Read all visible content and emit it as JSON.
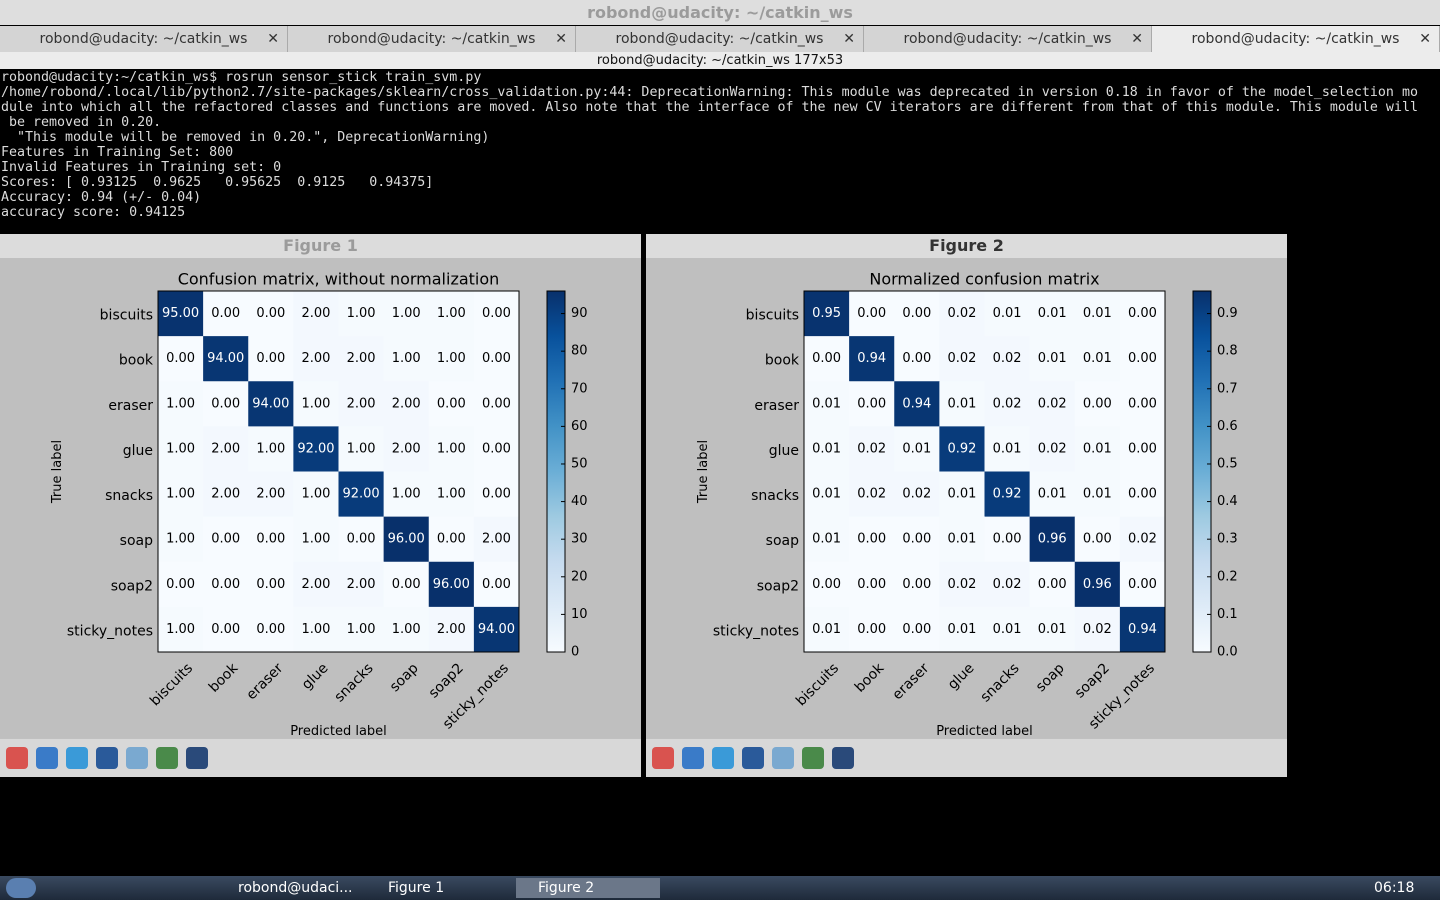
{
  "window": {
    "title": "robond@udacity: ~/catkin_ws",
    "tabs": [
      "robond@udacity: ~/catkin_ws",
      "robond@udacity: ~/catkin_ws",
      "robond@udacity: ~/catkin_ws",
      "robond@udacity: ~/catkin_ws",
      "robond@udacity: ~/catkin_ws"
    ],
    "subtitle": "robond@udacity: ~/catkin_ws 177x53"
  },
  "terminal": {
    "lines": [
      "robond@udacity:~/catkin_ws$ rosrun sensor_stick train_svm.py",
      "/home/robond/.local/lib/python2.7/site-packages/sklearn/cross_validation.py:44: DeprecationWarning: This module was deprecated in version 0.18 in favor of the model_selection mo",
      "dule into which all the refactored classes and functions are moved. Also note that the interface of the new CV iterators are different from that of this module. This module will",
      " be removed in 0.20.",
      "  \"This module will be removed in 0.20.\", DeprecationWarning)",
      "Features in Training Set: 800",
      "Invalid Features in Training set: 0",
      "Scores: [ 0.93125  0.9625   0.95625  0.9125   0.94375]",
      "Accuracy: 0.94 (+/- 0.04)",
      "accuracy score: 0.94125"
    ]
  },
  "figure_windows": [
    "Figure 1",
    "Figure 2"
  ],
  "chart_data": [
    {
      "type": "heatmap",
      "title": "Confusion matrix, without normalization",
      "xlabel": "Predicted label",
      "ylabel": "True label",
      "categories": [
        "biscuits",
        "book",
        "eraser",
        "glue",
        "snacks",
        "soap",
        "soap2",
        "sticky_notes"
      ],
      "values": [
        [
          95,
          0,
          0,
          2,
          1,
          1,
          1,
          0
        ],
        [
          0,
          94,
          0,
          2,
          2,
          1,
          1,
          0
        ],
        [
          1,
          0,
          94,
          1,
          2,
          2,
          0,
          0
        ],
        [
          1,
          2,
          1,
          92,
          1,
          2,
          1,
          0
        ],
        [
          1,
          2,
          2,
          1,
          92,
          1,
          1,
          0
        ],
        [
          1,
          0,
          0,
          1,
          0,
          96,
          0,
          2
        ],
        [
          0,
          0,
          0,
          2,
          2,
          0,
          96,
          0
        ],
        [
          1,
          0,
          0,
          1,
          1,
          1,
          2,
          94
        ]
      ],
      "value_labels": [
        [
          "95.00",
          "0.00",
          "0.00",
          "2.00",
          "1.00",
          "1.00",
          "1.00",
          "0.00"
        ],
        [
          "0.00",
          "94.00",
          "0.00",
          "2.00",
          "2.00",
          "1.00",
          "1.00",
          "0.00"
        ],
        [
          "1.00",
          "0.00",
          "94.00",
          "1.00",
          "2.00",
          "2.00",
          "0.00",
          "0.00"
        ],
        [
          "1.00",
          "2.00",
          "1.00",
          "92.00",
          "1.00",
          "2.00",
          "1.00",
          "0.00"
        ],
        [
          "1.00",
          "2.00",
          "2.00",
          "1.00",
          "92.00",
          "1.00",
          "1.00",
          "0.00"
        ],
        [
          "1.00",
          "0.00",
          "0.00",
          "1.00",
          "0.00",
          "96.00",
          "0.00",
          "2.00"
        ],
        [
          "0.00",
          "0.00",
          "0.00",
          "2.00",
          "2.00",
          "0.00",
          "96.00",
          "0.00"
        ],
        [
          "1.00",
          "0.00",
          "0.00",
          "1.00",
          "1.00",
          "1.00",
          "2.00",
          "94.00"
        ]
      ],
      "clim": [
        0,
        96
      ],
      "colorbar_ticks": [
        0,
        10,
        20,
        30,
        40,
        50,
        60,
        70,
        80,
        90
      ],
      "colors": [
        "#f7fbff",
        "#deebf7",
        "#c6dbef",
        "#9ecae1",
        "#6baed6",
        "#4292c6",
        "#2171b5",
        "#08519c",
        "#08306b"
      ]
    },
    {
      "type": "heatmap",
      "title": "Normalized confusion matrix",
      "xlabel": "Predicted label",
      "ylabel": "True label",
      "categories": [
        "biscuits",
        "book",
        "eraser",
        "glue",
        "snacks",
        "soap",
        "soap2",
        "sticky_notes"
      ],
      "values": [
        [
          0.95,
          0,
          0,
          0.02,
          0.01,
          0.01,
          0.01,
          0
        ],
        [
          0,
          0.94,
          0,
          0.02,
          0.02,
          0.01,
          0.01,
          0
        ],
        [
          0.01,
          0,
          0.94,
          0.01,
          0.02,
          0.02,
          0,
          0
        ],
        [
          0.01,
          0.02,
          0.01,
          0.92,
          0.01,
          0.02,
          0.01,
          0
        ],
        [
          0.01,
          0.02,
          0.02,
          0.01,
          0.92,
          0.01,
          0.01,
          0
        ],
        [
          0.01,
          0,
          0,
          0.01,
          0,
          0.96,
          0,
          0.02
        ],
        [
          0,
          0,
          0,
          0.02,
          0.02,
          0,
          0.96,
          0
        ],
        [
          0.01,
          0,
          0,
          0.01,
          0.01,
          0.01,
          0.02,
          0.94
        ]
      ],
      "value_labels": [
        [
          "0.95",
          "0.00",
          "0.00",
          "0.02",
          "0.01",
          "0.01",
          "0.01",
          "0.00"
        ],
        [
          "0.00",
          "0.94",
          "0.00",
          "0.02",
          "0.02",
          "0.01",
          "0.01",
          "0.00"
        ],
        [
          "0.01",
          "0.00",
          "0.94",
          "0.01",
          "0.02",
          "0.02",
          "0.00",
          "0.00"
        ],
        [
          "0.01",
          "0.02",
          "0.01",
          "0.92",
          "0.01",
          "0.02",
          "0.01",
          "0.00"
        ],
        [
          "0.01",
          "0.02",
          "0.02",
          "0.01",
          "0.92",
          "0.01",
          "0.01",
          "0.00"
        ],
        [
          "0.01",
          "0.00",
          "0.00",
          "0.01",
          "0.00",
          "0.96",
          "0.00",
          "0.02"
        ],
        [
          "0.00",
          "0.00",
          "0.00",
          "0.02",
          "0.02",
          "0.00",
          "0.96",
          "0.00"
        ],
        [
          "0.01",
          "0.00",
          "0.00",
          "0.01",
          "0.01",
          "0.01",
          "0.02",
          "0.94"
        ]
      ],
      "clim": [
        0,
        0.96
      ],
      "colorbar_ticks": [
        {
          "value": 0,
          "label": "0.0"
        },
        0.1,
        0.2,
        0.3,
        0.4,
        0.5,
        0.6,
        0.7,
        0.8,
        0.9
      ],
      "colors": [
        "#f7fbff",
        "#deebf7",
        "#c6dbef",
        "#9ecae1",
        "#6baed6",
        "#4292c6",
        "#2171b5",
        "#08519c",
        "#08306b"
      ]
    }
  ],
  "taskbar": {
    "items": [
      "robond@udaci...",
      "Figure 1",
      "Figure 2"
    ],
    "clock": "06:18"
  }
}
